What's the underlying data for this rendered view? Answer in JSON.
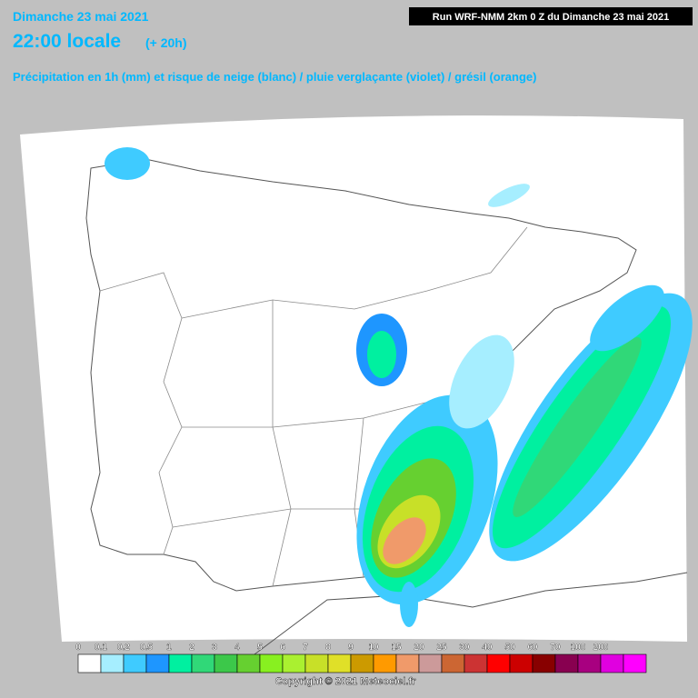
{
  "header": {
    "date": "Dimanche 23 mai 2021",
    "time": "22:00 locale",
    "lead": "(+ 20h)",
    "subtitle": "Précipitation en 1h (mm) et risque de neige (blanc) / pluie verglaçante (violet) / grésil (orange)",
    "run": "Run WRF-NMM 2km 0 Z du Dimanche 23 mai 2021"
  },
  "legend": {
    "items": [
      {
        "label": "0",
        "color": "#ffffff"
      },
      {
        "label": "0.1",
        "color": "#a6eeff"
      },
      {
        "label": "0.2",
        "color": "#3fcbff"
      },
      {
        "label": "0.5",
        "color": "#1e96ff"
      },
      {
        "label": "1",
        "color": "#00f0a0"
      },
      {
        "label": "2",
        "color": "#30d878"
      },
      {
        "label": "3",
        "color": "#3cc84a"
      },
      {
        "label": "4",
        "color": "#66d030"
      },
      {
        "label": "5",
        "color": "#88f020"
      },
      {
        "label": "6",
        "color": "#aaf030"
      },
      {
        "label": "7",
        "color": "#c8e028"
      },
      {
        "label": "8",
        "color": "#e0e028"
      },
      {
        "label": "9",
        "color": "#cc9a00"
      },
      {
        "label": "10",
        "color": "#ff9a00"
      },
      {
        "label": "15",
        "color": "#f09a6a"
      },
      {
        "label": "20",
        "color": "#cc9a9a"
      },
      {
        "label": "25",
        "color": "#cc6633"
      },
      {
        "label": "30",
        "color": "#cc3333"
      },
      {
        "label": "40",
        "color": "#ff0000"
      },
      {
        "label": "50",
        "color": "#cc0000"
      },
      {
        "label": "60",
        "color": "#880000"
      },
      {
        "label": "70",
        "color": "#880050"
      },
      {
        "label": "100",
        "color": "#a80080"
      },
      {
        "label": "200",
        "color": "#e000e0"
      }
    ],
    "extra_color": "#ff00ff"
  },
  "footer": {
    "copyright": "Copyright © 2021 Meteociel.fr"
  }
}
